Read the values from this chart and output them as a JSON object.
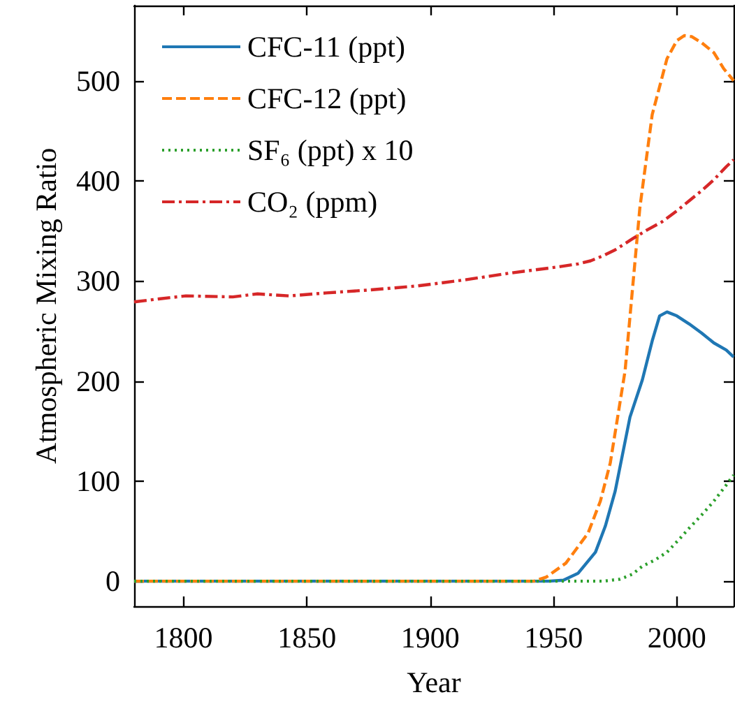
{
  "chart_data": {
    "type": "line",
    "xlabel": "Year",
    "ylabel": "Atmospheric Mixing Ratio",
    "xlim": [
      1780,
      2023
    ],
    "xticks": [
      1800,
      1850,
      1900,
      1950,
      2000
    ],
    "ylim": [
      -25,
      575
    ],
    "yticks": [
      0,
      100,
      200,
      300,
      400,
      500
    ],
    "grid": false,
    "legend": "top left",
    "marker": "none",
    "series": [
      {
        "name": "CFC-11 (ppt)",
        "color": "#1f77b4",
        "line_style": "solid",
        "x": [
          1780,
          1900,
          1948,
          1954,
          1960,
          1967,
          1971,
          1975,
          1981,
          1986,
          1990,
          1993,
          1996,
          2000,
          2005,
          2010,
          2015,
          2020,
          2023
        ],
        "values": [
          0,
          0,
          0,
          1,
          8,
          29,
          55,
          90,
          164,
          201,
          240,
          265,
          269,
          265,
          257,
          248,
          238,
          231,
          224
        ]
      },
      {
        "name": "CFC-12 (ppt)",
        "color": "#ff7f0e",
        "line_style": "dashed",
        "x": [
          1780,
          1900,
          1942,
          1947,
          1955,
          1964,
          1969,
          1973,
          1979,
          1985,
          1990,
          1996,
          2000,
          2003,
          2006,
          2010,
          2015,
          2019,
          2023
        ],
        "values": [
          0,
          0,
          0,
          4,
          18,
          48,
          80,
          118,
          210,
          373,
          466,
          522,
          540,
          545,
          544,
          538,
          528,
          512,
          500
        ]
      },
      {
        "name": "SF₆ (ppt) x 10",
        "color": "#2ca02c",
        "line_style": "dotted",
        "x": [
          1780,
          1900,
          1958,
          1970,
          1977,
          1982,
          1986,
          1991,
          1996,
          2001,
          2005,
          2010,
          2015,
          2020,
          2023
        ],
        "values": [
          0,
          0,
          0,
          0,
          2,
          7,
          15,
          21,
          29,
          42,
          53,
          66,
          80,
          96,
          106
        ]
      },
      {
        "name": "CO₂ (ppm)",
        "color": "#d62728",
        "line_style": "dashdot",
        "x": [
          1780,
          1790,
          1801,
          1820,
          1830,
          1843,
          1858,
          1876,
          1895,
          1914,
          1933,
          1952,
          1960,
          1965,
          1970,
          1975,
          1982,
          1988,
          1994,
          2000,
          2005,
          2010,
          2015,
          2020,
          2023
        ],
        "values": [
          279,
          282,
          285,
          284,
          287,
          285,
          288,
          291,
          295,
          301,
          308,
          314,
          317,
          320,
          325,
          331,
          342,
          351,
          359,
          370,
          380,
          390,
          401,
          414,
          421
        ]
      }
    ]
  }
}
